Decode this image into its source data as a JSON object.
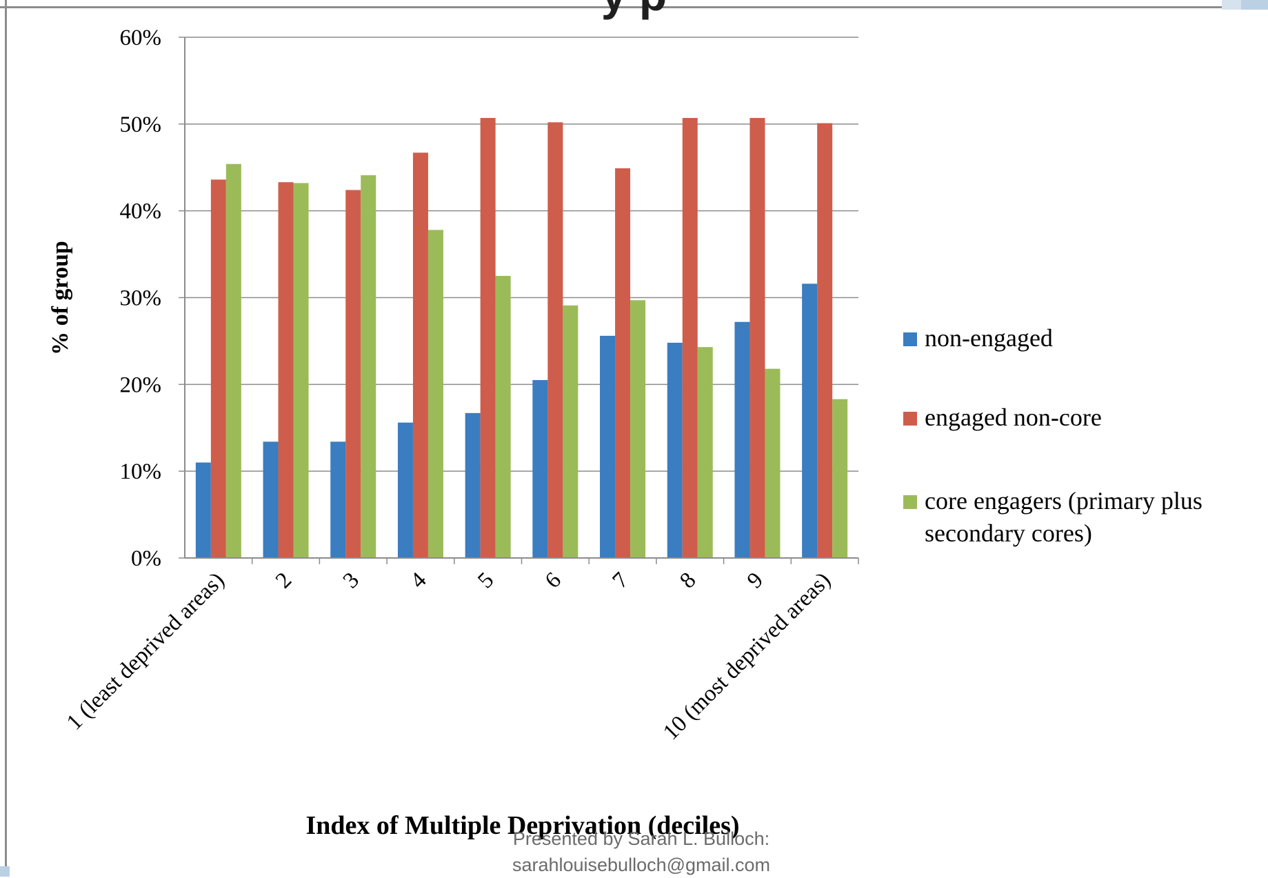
{
  "header": {
    "title_partial": "y p"
  },
  "footer": {
    "line1": "Presented by Sarah L. Bulloch:",
    "line2": "sarahlouisebulloch@gmail.com"
  },
  "colors": {
    "non_engaged": "#3a7dc0",
    "engaged_non_core": "#cf5d4c",
    "core_engagers": "#9bbb59",
    "grid": "#8c8c8c",
    "text": "#000000"
  },
  "chart_data": {
    "type": "bar",
    "title": "",
    "xlabel": "Index of Multiple Deprivation (deciles)",
    "ylabel": "% of group",
    "ylim": [
      0,
      60
    ],
    "y_ticks": [
      "0%",
      "10%",
      "20%",
      "30%",
      "40%",
      "50%",
      "60%"
    ],
    "y_tick_values": [
      0,
      10,
      20,
      30,
      40,
      50,
      60
    ],
    "grid": true,
    "legend_position": "right",
    "categories": [
      "1 (least deprived areas)",
      "2",
      "3",
      "4",
      "5",
      "6",
      "7",
      "8",
      "9",
      "10 (most deprived areas)"
    ],
    "series": [
      {
        "name": "non-engaged",
        "color": "#3a7dc0",
        "values": [
          11,
          13.4,
          13.4,
          15.6,
          16.7,
          20.5,
          25.6,
          24.8,
          27.2,
          31.6
        ]
      },
      {
        "name": "engaged non-core",
        "color": "#cf5d4c",
        "values": [
          43.6,
          43.3,
          42.4,
          46.7,
          50.7,
          50.2,
          44.9,
          50.7,
          50.7,
          50.1
        ]
      },
      {
        "name": "core engagers (primary plus secondary cores)",
        "color": "#9bbb59",
        "values": [
          45.4,
          43.2,
          44.1,
          37.8,
          32.5,
          29.1,
          29.7,
          24.3,
          21.8,
          18.3
        ]
      }
    ],
    "legend_lines": [
      [
        "non-engaged"
      ],
      [
        "engaged non-core"
      ],
      [
        "core engagers (primary plus",
        "secondary cores)"
      ]
    ]
  }
}
